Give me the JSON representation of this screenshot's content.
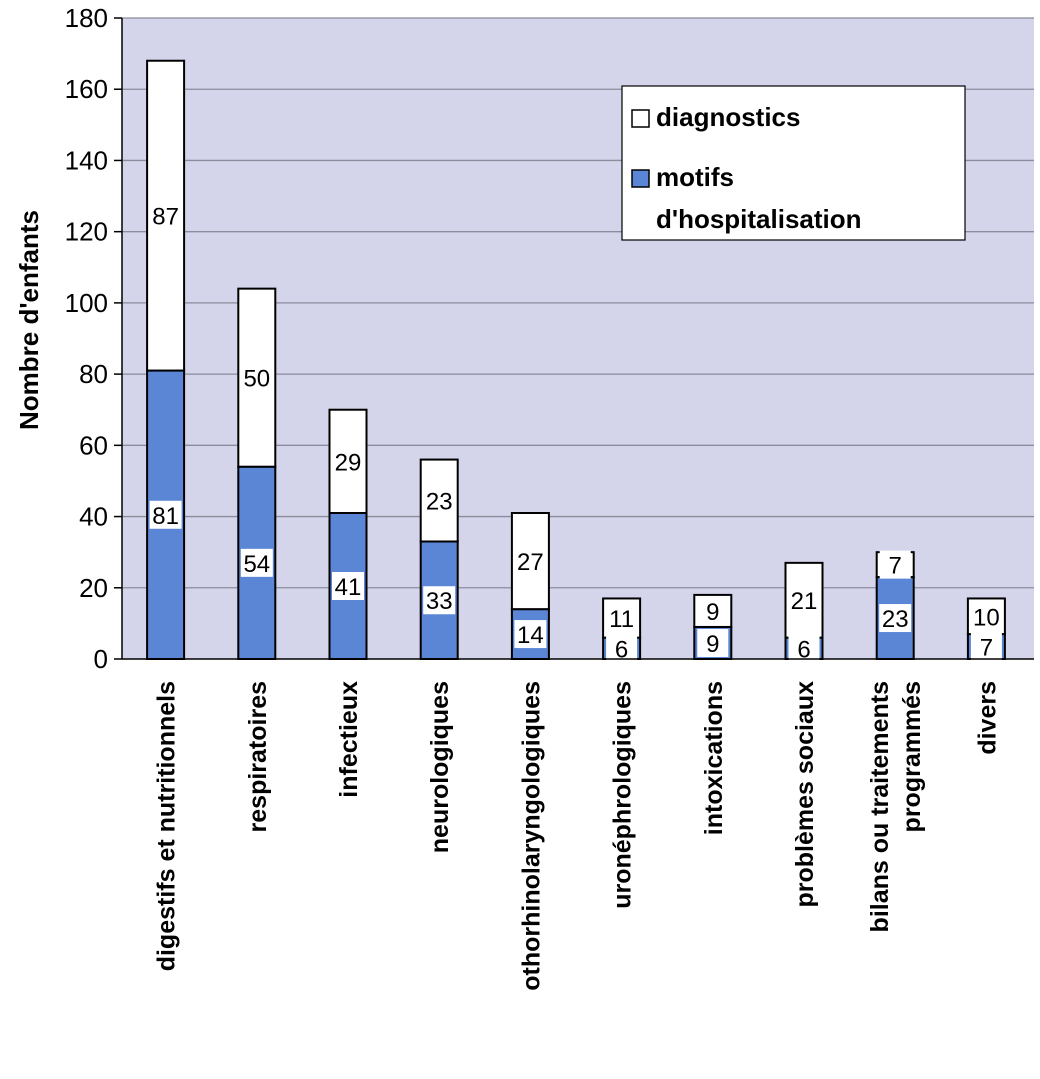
{
  "chart_data": {
    "type": "bar",
    "stacked": true,
    "ylabel": "Nombre d'enfants",
    "ylim": [
      0,
      180
    ],
    "yticks": [
      0,
      20,
      40,
      60,
      80,
      100,
      120,
      140,
      160,
      180
    ],
    "grid": true,
    "legend_position": "top-right",
    "categories": [
      [
        "digestifs et nutritionnels"
      ],
      [
        "respiratoires"
      ],
      [
        "infectieux"
      ],
      [
        "neurologiques"
      ],
      [
        "othorhinolaryngologiques"
      ],
      [
        "uronéphrologiques"
      ],
      [
        "intoxications"
      ],
      [
        "problèmes sociaux"
      ],
      [
        "bilans ou traitements",
        "programmés"
      ],
      [
        "divers"
      ]
    ],
    "series": [
      {
        "name": "motifs d'hospitalisation",
        "legend_lines": [
          "motifs",
          "d'hospitalisation"
        ],
        "color": "#5b86d6",
        "values": [
          81,
          54,
          41,
          33,
          14,
          6,
          9,
          6,
          23,
          7
        ]
      },
      {
        "name": "diagnostics",
        "legend_lines": [
          "diagnostics"
        ],
        "color": "#ffffff",
        "values": [
          87,
          50,
          29,
          23,
          27,
          11,
          9,
          21,
          7,
          10
        ]
      }
    ],
    "colors": {
      "plot_background": "#d4d5ea",
      "grid": "#8c8c9c",
      "bar_stroke": "#000000"
    }
  }
}
